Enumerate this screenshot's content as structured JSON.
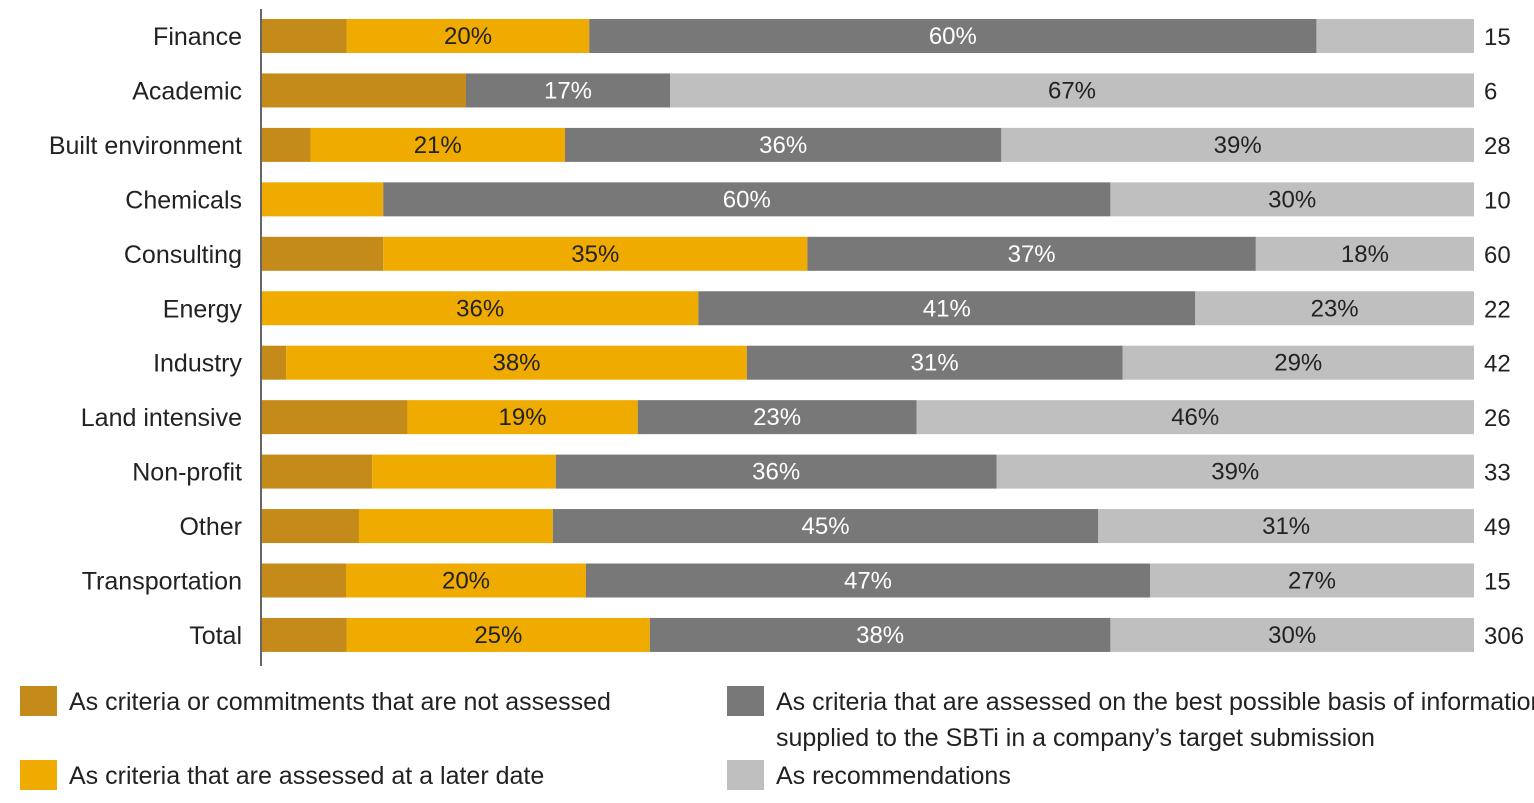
{
  "chart_data": {
    "type": "bar",
    "orientation": "horizontal",
    "stacked": true,
    "normalized": true,
    "title": "",
    "xlabel": "",
    "ylabel": "",
    "xlim": [
      0,
      100
    ],
    "grid": false,
    "legend_position": "bottom",
    "categories": [
      "Finance",
      "Academic",
      "Built environment",
      "Chemicals",
      "Consulting",
      "Energy",
      "Industry",
      "Land intensive",
      "Non-profit",
      "Other",
      "Transportation",
      "Total"
    ],
    "counts": [
      "15",
      "6",
      "28",
      "10",
      "60",
      "22",
      "42",
      "26",
      "33",
      "49",
      "15",
      "306"
    ],
    "series": [
      {
        "name": "As criteria or commitments that are not assessed",
        "color": "#C48A1A",
        "values": [
          7,
          17,
          4,
          0,
          10,
          0,
          2,
          12,
          9,
          8,
          7,
          7
        ],
        "labels": [
          "",
          "",
          "",
          "",
          "",
          "",
          "",
          "",
          "",
          "",
          "",
          ""
        ]
      },
      {
        "name": "As criteria that are assessed at a later date",
        "color": "#F0AB00",
        "values": [
          20,
          0,
          21,
          10,
          35,
          36,
          38,
          19,
          15,
          16,
          20,
          25
        ],
        "labels": [
          "20%",
          "",
          "21%",
          "",
          "35%",
          "36%",
          "38%",
          "19%",
          "",
          "",
          "20%",
          "25%"
        ]
      },
      {
        "name": "As criteria that are assessed on the best possible basis of information supplied to the SBTi in a company’s target submission",
        "legend_lines": [
          "As criteria that are assessed on the best possible basis of information",
          "supplied to the SBTi in a company’s target submission"
        ],
        "color": "#787878",
        "values": [
          60,
          17,
          36,
          60,
          37,
          41,
          31,
          23,
          36,
          45,
          47,
          38
        ],
        "labels": [
          "60%",
          "17%",
          "36%",
          "60%",
          "37%",
          "41%",
          "31%",
          "23%",
          "36%",
          "45%",
          "47%",
          "38%"
        ]
      },
      {
        "name": "As recommendations",
        "color": "#BFBFBF",
        "values": [
          13,
          67,
          39,
          30,
          18,
          23,
          29,
          46,
          39,
          31,
          27,
          30
        ],
        "labels": [
          "",
          "67%",
          "39%",
          "30%",
          "18%",
          "23%",
          "29%",
          "46%",
          "39%",
          "31%",
          "27%",
          "30%"
        ]
      }
    ],
    "label_colors": [
      "#222222",
      "#222222",
      "#ffffff",
      "#222222"
    ]
  }
}
